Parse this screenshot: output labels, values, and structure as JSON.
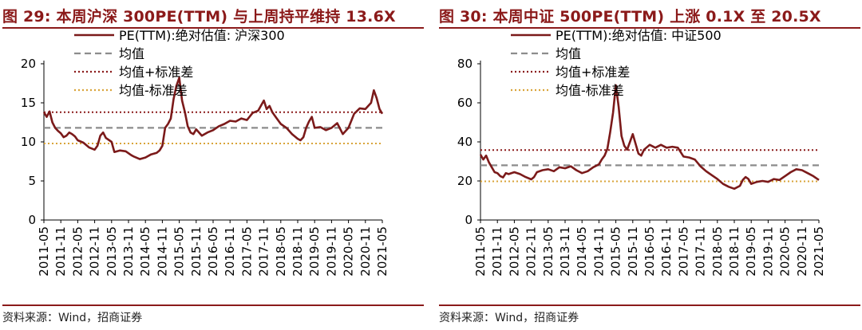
{
  "source_label": "资料来源：Wind，招商证券",
  "chart_data": [
    {
      "type": "line",
      "title": "图 29:  本周沪深 300PE(TTM) 与上周持平维持 13.6X",
      "x_tick_labels": [
        "2011-05",
        "2011-11",
        "2012-05",
        "2012-11",
        "2013-05",
        "2013-11",
        "2014-05",
        "2014-11",
        "2015-05",
        "2015-11",
        "2016-05",
        "2016-11",
        "2017-05",
        "2017-11",
        "2018-05",
        "2018-11",
        "2019-05",
        "2019-11",
        "2020-05",
        "2020-11",
        "2021-05"
      ],
      "ylim": [
        0,
        20
      ],
      "yticks": [
        0,
        5,
        10,
        15,
        20
      ],
      "legend_placement": "top",
      "series": [
        {
          "name": "PE(TTM):绝对估值: 沪深300",
          "color": "#7b1a1a",
          "style": "solid",
          "x": [
            "2011-05",
            "2011-06",
            "2011-07",
            "2011-08",
            "2011-09",
            "2011-10",
            "2011-11",
            "2011-12",
            "2012-01",
            "2012-02",
            "2012-03",
            "2012-04",
            "2012-05",
            "2012-07",
            "2012-09",
            "2012-11",
            "2012-12",
            "2013-01",
            "2013-02",
            "2013-03",
            "2013-05",
            "2013-06",
            "2013-08",
            "2013-10",
            "2013-12",
            "2014-01",
            "2014-03",
            "2014-05",
            "2014-07",
            "2014-09",
            "2014-10",
            "2014-11",
            "2014-12",
            "2015-01",
            "2015-02",
            "2015-03",
            "2015-04",
            "2015-05",
            "2015-06",
            "2015-07",
            "2015-08",
            "2015-09",
            "2015-10",
            "2015-11",
            "2016-01",
            "2016-03",
            "2016-05",
            "2016-07",
            "2016-09",
            "2016-11",
            "2017-01",
            "2017-03",
            "2017-05",
            "2017-07",
            "2017-09",
            "2017-11",
            "2017-12",
            "2018-01",
            "2018-02",
            "2018-03",
            "2018-05",
            "2018-07",
            "2018-09",
            "2018-11",
            "2018-12",
            "2019-01",
            "2019-02",
            "2019-03",
            "2019-04",
            "2019-05",
            "2019-07",
            "2019-09",
            "2019-11",
            "2020-01",
            "2020-03",
            "2020-05",
            "2020-07",
            "2020-09",
            "2020-11",
            "2021-01",
            "2021-02",
            "2021-03",
            "2021-04",
            "2021-05"
          ],
          "values": [
            13.8,
            13.2,
            13.9,
            12.5,
            11.8,
            11.4,
            11.1,
            10.6,
            10.8,
            11.2,
            11.0,
            10.7,
            10.2,
            9.9,
            9.3,
            9.0,
            9.5,
            10.8,
            11.2,
            10.5,
            10.0,
            8.7,
            8.9,
            8.8,
            8.3,
            8.1,
            7.8,
            8.0,
            8.4,
            8.6,
            8.9,
            9.5,
            11.8,
            12.3,
            13.0,
            15.5,
            17.2,
            18.2,
            15.3,
            13.8,
            12.0,
            11.2,
            11.0,
            11.6,
            10.8,
            11.2,
            11.5,
            12.0,
            12.3,
            12.7,
            12.6,
            13.0,
            12.8,
            13.7,
            14.0,
            15.3,
            14.2,
            14.6,
            13.8,
            13.3,
            12.3,
            11.8,
            11.0,
            10.4,
            10.2,
            10.6,
            11.8,
            12.6,
            13.2,
            11.8,
            11.9,
            11.5,
            11.8,
            12.4,
            11.0,
            11.8,
            13.6,
            14.3,
            14.2,
            15.0,
            16.6,
            15.6,
            14.2,
            13.6
          ]
        },
        {
          "name": "均值",
          "color": "#8c8c8c",
          "style": "dashed",
          "values": [
            11.8
          ]
        },
        {
          "name": "均值+标准差",
          "color": "#8b1a1a",
          "style": "dotted",
          "values": [
            13.8
          ]
        },
        {
          "name": "均值-标准差",
          "color": "#d9a43a",
          "style": "dotted",
          "values": [
            9.8
          ]
        }
      ]
    },
    {
      "type": "line",
      "title": "图 30:  本周中证 500PE(TTM) 上涨 0.1X 至 20.5X",
      "x_tick_labels": [
        "2011-05",
        "2011-11",
        "2012-05",
        "2012-11",
        "2013-05",
        "2013-11",
        "2014-05",
        "2014-11",
        "2015-05",
        "2015-11",
        "2016-05",
        "2016-11",
        "2017-05",
        "2017-11",
        "2018-05",
        "2018-11",
        "2019-05",
        "2019-11",
        "2020-05",
        "2020-11",
        "2021-05"
      ],
      "ylim": [
        0,
        80
      ],
      "yticks": [
        0,
        20,
        40,
        60,
        80
      ],
      "legend_placement": "top",
      "series": [
        {
          "name": "PE(TTM):绝对估值: 中证500",
          "color": "#7b1a1a",
          "style": "solid",
          "x": [
            "2011-05",
            "2011-06",
            "2011-07",
            "2011-08",
            "2011-09",
            "2011-10",
            "2011-11",
            "2011-12",
            "2012-01",
            "2012-02",
            "2012-03",
            "2012-05",
            "2012-07",
            "2012-09",
            "2012-11",
            "2012-12",
            "2013-01",
            "2013-03",
            "2013-05",
            "2013-07",
            "2013-09",
            "2013-11",
            "2014-01",
            "2014-03",
            "2014-05",
            "2014-07",
            "2014-09",
            "2014-11",
            "2014-12",
            "2015-01",
            "2015-02",
            "2015-03",
            "2015-04",
            "2015-05",
            "2015-06",
            "2015-07",
            "2015-08",
            "2015-09",
            "2015-10",
            "2015-11",
            "2016-01",
            "2016-02",
            "2016-03",
            "2016-05",
            "2016-07",
            "2016-09",
            "2016-11",
            "2017-01",
            "2017-03",
            "2017-05",
            "2017-07",
            "2017-09",
            "2017-11",
            "2018-01",
            "2018-03",
            "2018-05",
            "2018-07",
            "2018-09",
            "2018-11",
            "2019-01",
            "2019-02",
            "2019-03",
            "2019-04",
            "2019-05",
            "2019-07",
            "2019-09",
            "2019-11",
            "2020-01",
            "2020-03",
            "2020-05",
            "2020-07",
            "2020-09",
            "2020-11",
            "2021-01",
            "2021-03",
            "2021-05"
          ],
          "values": [
            33.5,
            31.0,
            33.0,
            29.5,
            27.0,
            24.5,
            24.0,
            22.5,
            21.8,
            24.0,
            23.5,
            24.5,
            23.5,
            22.0,
            20.8,
            22.0,
            24.5,
            25.5,
            26.0,
            25.0,
            27.0,
            26.5,
            27.5,
            25.5,
            24.0,
            25.0,
            27.0,
            28.5,
            31.0,
            33.0,
            36.5,
            45.0,
            55.0,
            69.0,
            58.0,
            43.0,
            38.0,
            36.0,
            40.0,
            44.0,
            34.0,
            33.0,
            36.0,
            38.5,
            37.0,
            38.5,
            37.0,
            37.5,
            37.0,
            32.5,
            32.0,
            31.0,
            27.5,
            25.0,
            23.0,
            21.0,
            18.5,
            17.0,
            16.0,
            17.5,
            20.5,
            22.0,
            21.0,
            18.5,
            19.5,
            20.0,
            19.5,
            21.0,
            20.5,
            22.5,
            24.5,
            26.0,
            25.5,
            24.0,
            22.5,
            20.5
          ]
        },
        {
          "name": "均值",
          "color": "#8c8c8c",
          "style": "dashed",
          "values": [
            28.0
          ]
        },
        {
          "name": "均值+标准差",
          "color": "#8b1a1a",
          "style": "dotted",
          "values": [
            35.8
          ]
        },
        {
          "name": "均值-标准差",
          "color": "#d9a43a",
          "style": "dotted",
          "values": [
            19.8
          ]
        }
      ]
    }
  ]
}
